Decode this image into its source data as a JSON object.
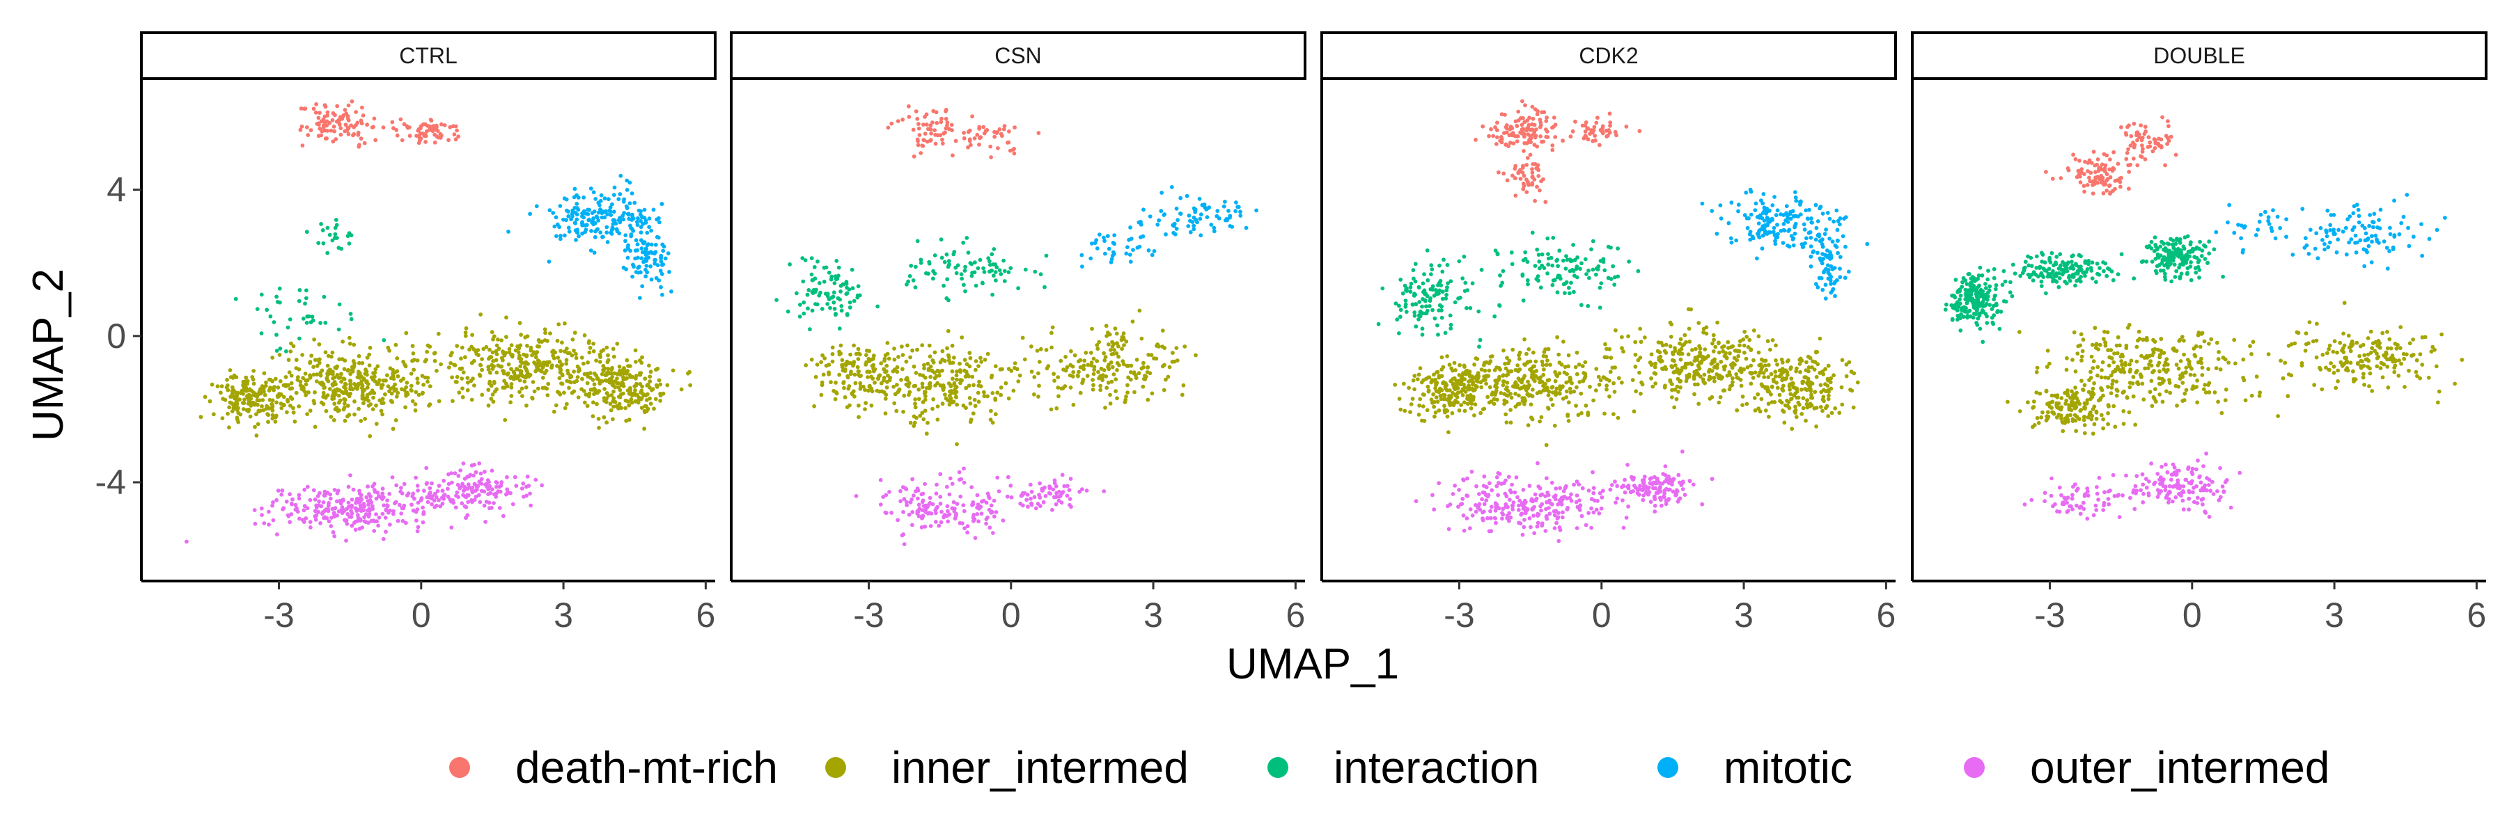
{
  "chart_data": {
    "type": "scatter",
    "xlabel": "UMAP_1",
    "ylabel": "UMAP_2",
    "xlim": [
      -5.9,
      6.2
    ],
    "ylim": [
      -6.7,
      7.0
    ],
    "x_ticks": [
      -3,
      0,
      3,
      6
    ],
    "x_tick_labels": [
      "-3",
      "0",
      "3",
      "6"
    ],
    "y_ticks": [
      -4,
      0,
      4
    ],
    "y_tick_labels": [
      "-4",
      "0",
      "4"
    ],
    "grid": false,
    "legend_position": "bottom",
    "panels": [
      {
        "label": "CTRL",
        "clusters": {
          "death-mt-rich": {
            "n": 160,
            "blobs": [
              [
                -1.8,
                5.8,
                0.7,
                0.5,
                1
              ],
              [
                0.2,
                5.6,
                0.6,
                0.3,
                0.6
              ]
            ]
          },
          "inner_intermed": {
            "n": 1100,
            "blobs": [
              [
                -1.5,
                -1.3,
                1.6,
                0.9,
                1.2
              ],
              [
                2.2,
                -0.8,
                1.6,
                0.9,
                1
              ],
              [
                4.2,
                -1.4,
                0.9,
                0.8,
                0.8
              ],
              [
                -3.6,
                -1.7,
                0.7,
                0.6,
                0.6
              ]
            ]
          },
          "interaction": {
            "n": 60,
            "blobs": [
              [
                -1.8,
                2.8,
                0.4,
                0.4,
                0.3
              ],
              [
                -2.5,
                0.6,
                1.3,
                0.8,
                1
              ]
            ]
          },
          "mitotic": {
            "n": 280,
            "blobs": [
              [
                3.8,
                3.2,
                1.1,
                0.7,
                1
              ],
              [
                4.8,
                2.2,
                0.4,
                0.8,
                0.4
              ]
            ]
          },
          "outer_intermed": {
            "n": 420,
            "blobs": [
              [
                -1.5,
                -4.7,
                1.6,
                0.6,
                1
              ],
              [
                1.0,
                -4.2,
                1.2,
                0.5,
                0.6
              ]
            ]
          }
        }
      },
      {
        "label": "CSN",
        "clusters": {
          "death-mt-rich": {
            "n": 100,
            "blobs": [
              [
                -1.7,
                5.6,
                0.6,
                0.6,
                1
              ],
              [
                -0.4,
                5.4,
                0.6,
                0.4,
                0.6
              ]
            ]
          },
          "inner_intermed": {
            "n": 560,
            "blobs": [
              [
                -1.5,
                -1.3,
                1.6,
                0.9,
                1
              ],
              [
                2.0,
                -0.8,
                1.6,
                0.9,
                0.9
              ],
              [
                -3.2,
                -1.0,
                0.8,
                0.8,
                0.6
              ]
            ]
          },
          "interaction": {
            "n": 170,
            "blobs": [
              [
                -3.8,
                1.3,
                0.9,
                0.8,
                1
              ],
              [
                -0.8,
                1.8,
                1.3,
                0.6,
                0.8
              ]
            ]
          },
          "mitotic": {
            "n": 110,
            "blobs": [
              [
                4.0,
                3.3,
                1.0,
                0.5,
                1
              ],
              [
                2.2,
                2.4,
                0.8,
                0.5,
                0.4
              ]
            ]
          },
          "outer_intermed": {
            "n": 220,
            "blobs": [
              [
                -1.5,
                -4.6,
                1.5,
                0.7,
                1
              ],
              [
                0.8,
                -4.3,
                0.8,
                0.4,
                0.4
              ]
            ]
          }
        }
      },
      {
        "label": "CDK2",
        "clusters": {
          "death-mt-rich": {
            "n": 200,
            "blobs": [
              [
                -1.6,
                5.6,
                0.7,
                0.5,
                1
              ],
              [
                -0.2,
                5.6,
                0.5,
                0.3,
                0.5
              ],
              [
                -1.6,
                4.4,
                0.4,
                0.5,
                0.4
              ]
            ]
          },
          "inner_intermed": {
            "n": 1000,
            "blobs": [
              [
                -1.5,
                -1.3,
                1.6,
                0.9,
                1.2
              ],
              [
                2.2,
                -0.8,
                1.6,
                0.9,
                1
              ],
              [
                4.2,
                -1.4,
                0.9,
                0.8,
                0.8
              ],
              [
                -3.3,
                -1.5,
                0.8,
                0.6,
                0.6
              ]
            ]
          },
          "interaction": {
            "n": 240,
            "blobs": [
              [
                -3.6,
                1.0,
                0.9,
                0.9,
                1
              ],
              [
                -0.8,
                1.8,
                1.2,
                0.7,
                0.8
              ]
            ]
          },
          "mitotic": {
            "n": 240,
            "blobs": [
              [
                3.8,
                3.1,
                1.1,
                0.7,
                1
              ],
              [
                4.8,
                2.0,
                0.4,
                0.8,
                0.4
              ]
            ]
          },
          "outer_intermed": {
            "n": 380,
            "blobs": [
              [
                -1.6,
                -4.6,
                1.6,
                0.7,
                1
              ],
              [
                1.0,
                -4.2,
                1.0,
                0.5,
                0.5
              ]
            ]
          }
        }
      },
      {
        "label": "DOUBLE",
        "clusters": {
          "death-mt-rich": {
            "n": 150,
            "blobs": [
              [
                -2.0,
                4.4,
                0.6,
                0.5,
                1
              ],
              [
                -1.0,
                5.3,
                0.6,
                0.5,
                0.7
              ]
            ]
          },
          "inner_intermed": {
            "n": 600,
            "blobs": [
              [
                -0.8,
                -0.8,
                1.8,
                1.0,
                1
              ],
              [
                3.6,
                -0.6,
                1.3,
                0.8,
                0.7
              ],
              [
                -2.6,
                -2.0,
                0.8,
                0.6,
                0.5
              ]
            ]
          },
          "interaction": {
            "n": 520,
            "blobs": [
              [
                -4.6,
                1.0,
                0.5,
                0.6,
                1
              ],
              [
                -2.8,
                1.8,
                1.0,
                0.4,
                0.8
              ],
              [
                -0.3,
                2.2,
                0.6,
                0.5,
                0.8
              ]
            ]
          },
          "mitotic": {
            "n": 130,
            "blobs": [
              [
                3.5,
                2.8,
                1.3,
                0.7,
                1
              ],
              [
                1.5,
                3.0,
                0.6,
                0.6,
                0.3
              ]
            ]
          },
          "outer_intermed": {
            "n": 200,
            "blobs": [
              [
                -0.3,
                -4.1,
                0.9,
                0.6,
                1
              ],
              [
                -2.4,
                -4.5,
                0.8,
                0.5,
                0.5
              ]
            ]
          }
        }
      }
    ],
    "legend": {
      "entries": [
        {
          "name": "death-mt-rich",
          "color": "#F8766D"
        },
        {
          "name": "inner_intermed",
          "color": "#A3A500"
        },
        {
          "name": "interaction",
          "color": "#00BF7D"
        },
        {
          "name": "mitotic",
          "color": "#00B0F6"
        },
        {
          "name": "outer_intermed",
          "color": "#E76BF3"
        }
      ]
    },
    "colors": {
      "death-mt-rich": "#F8766D",
      "inner_intermed": "#A3A500",
      "interaction": "#00BF7D",
      "mitotic": "#00B0F6",
      "outer_intermed": "#E76BF3"
    }
  }
}
